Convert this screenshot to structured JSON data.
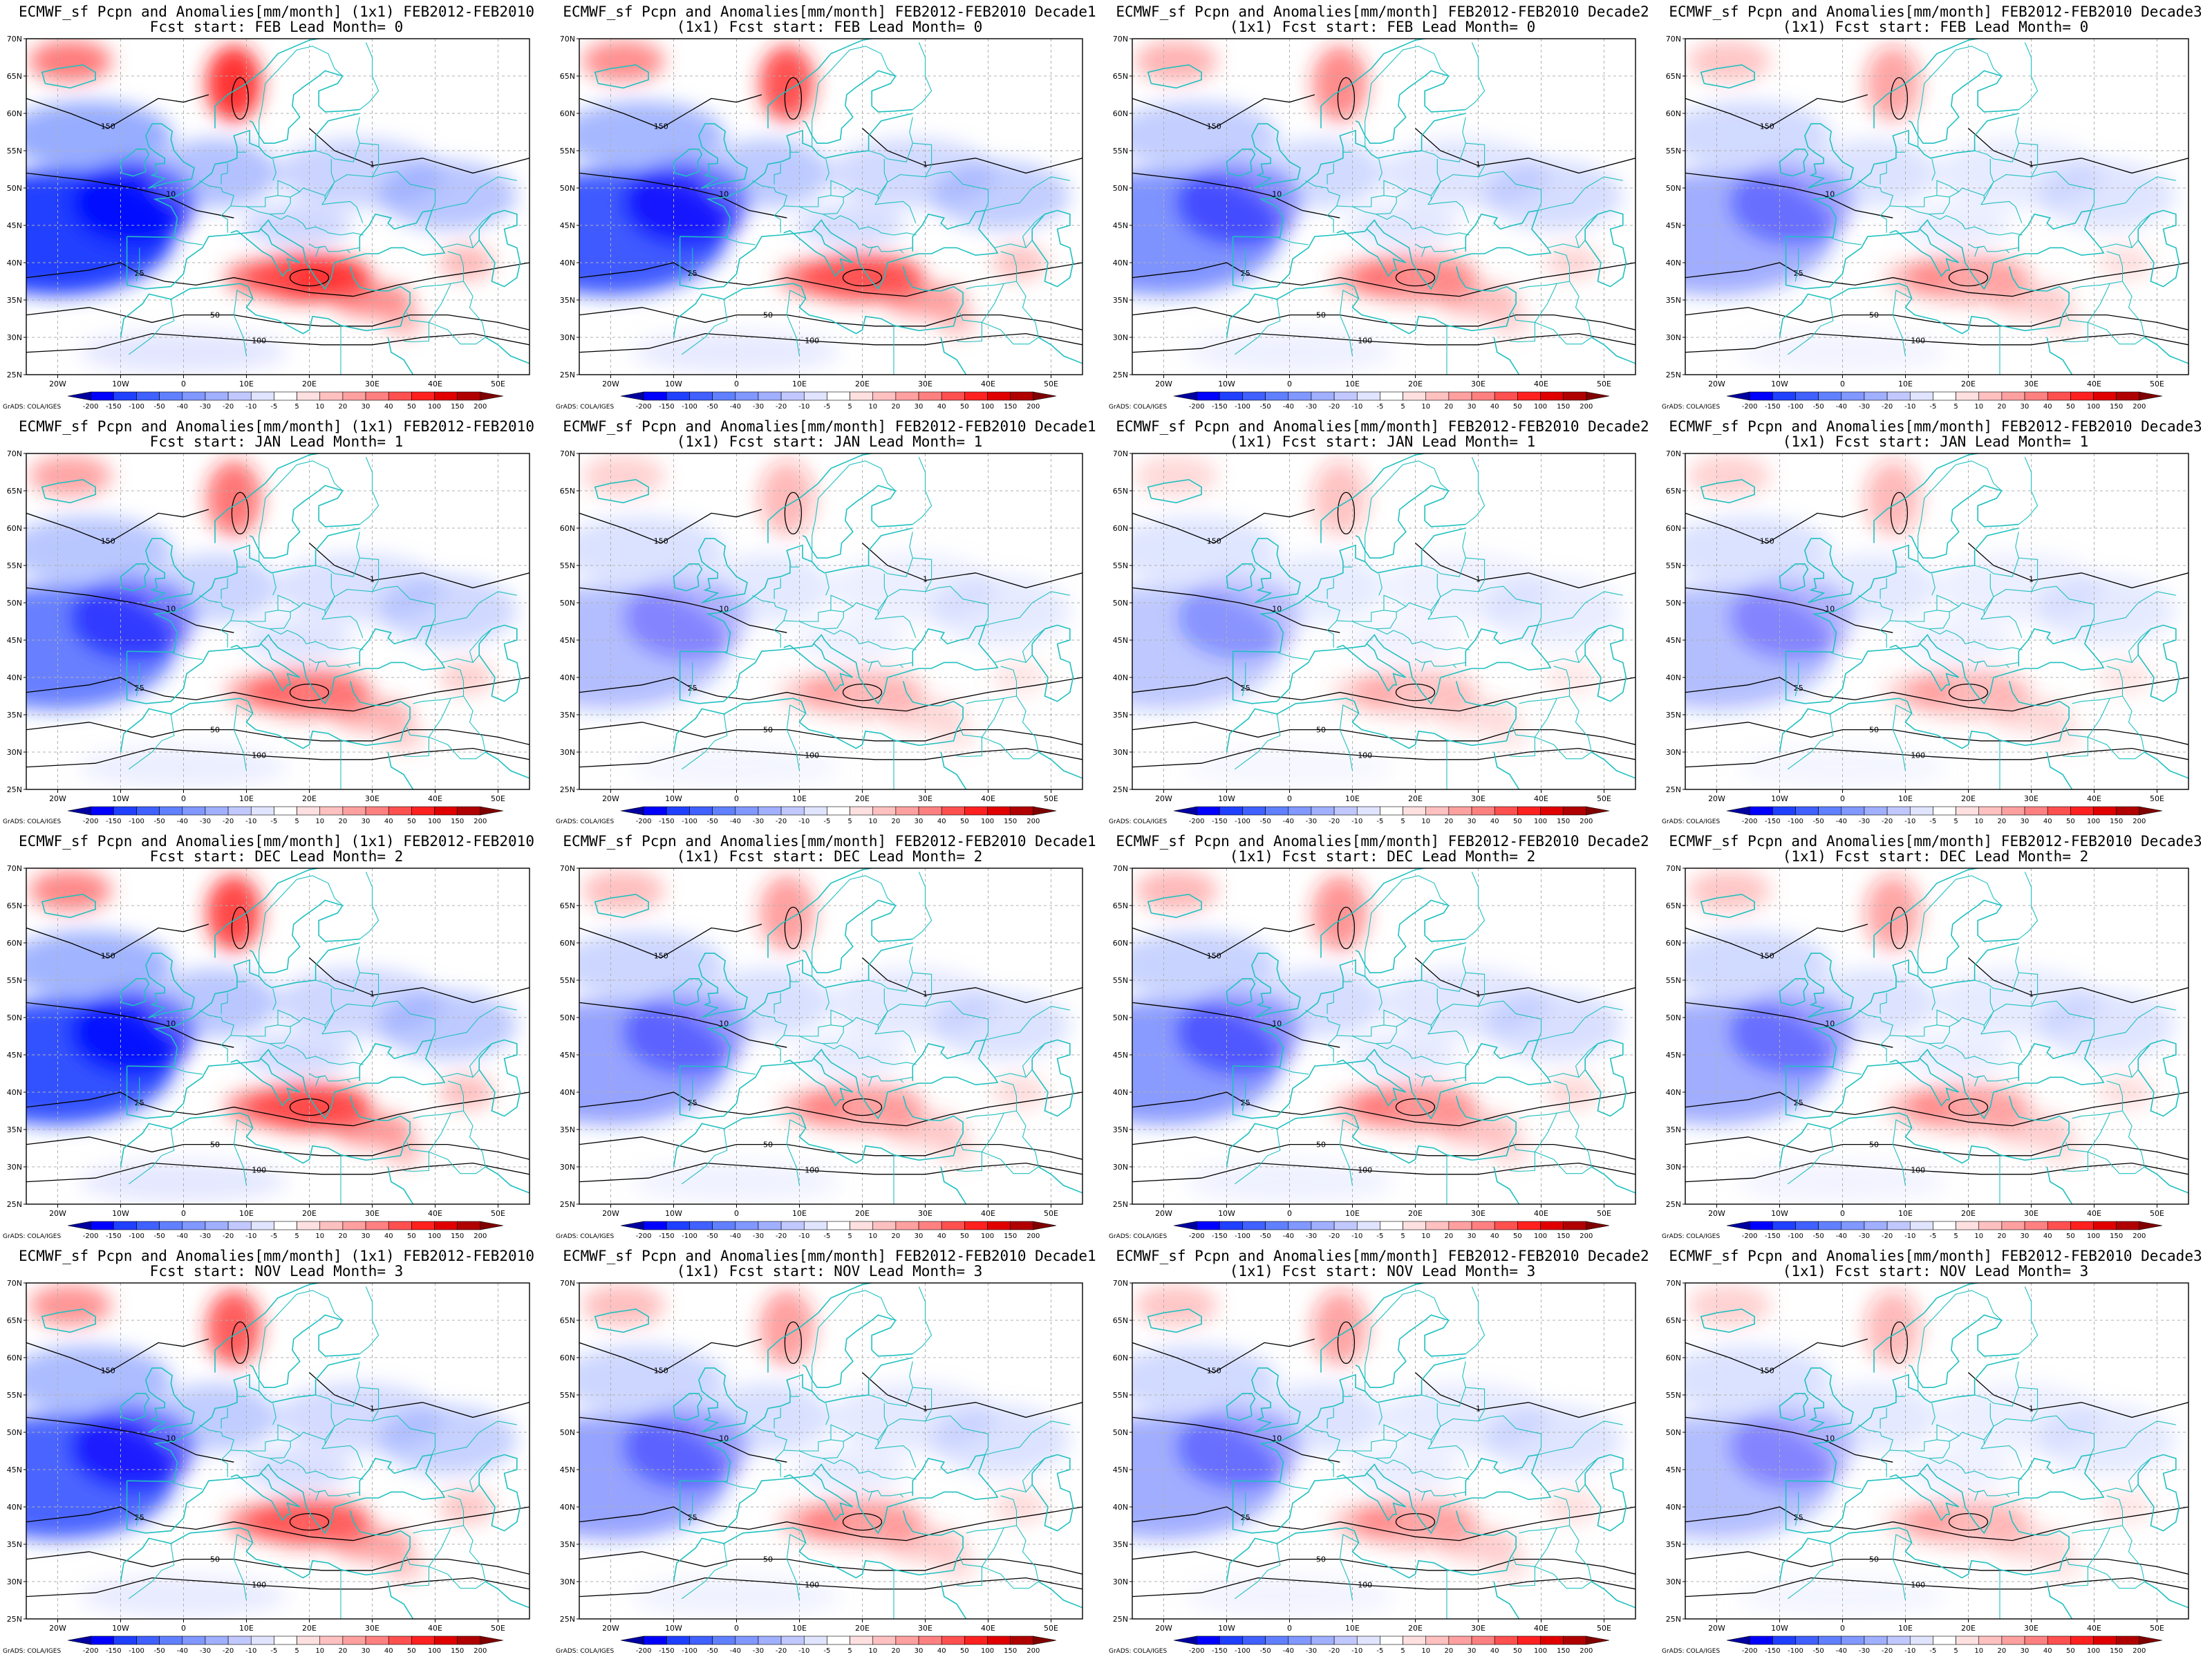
{
  "figure": {
    "panel_title_prefix": "ECMWF_sf Pcpn and Anomalies[mm/month]",
    "rows": [
      {
        "start_line": "Fcst start: FEB",
        "lead_line": "Lead Month= 0"
      },
      {
        "start_line": "Fcst start: JAN",
        "lead_line": "Lead Month= 1"
      },
      {
        "start_line": "Fcst start: DEC",
        "lead_line": "Lead Month= 2"
      },
      {
        "start_line": "Fcst start: NOV",
        "lead_line": "Lead Month= 3"
      }
    ],
    "panels": [
      {
        "row": 0,
        "col": 0,
        "line1": "ECMWF_sf Pcpn and Anomalies[mm/month] (1x1) FEB2012-FEB2010",
        "line2": "Fcst start: FEB  Lead Month= 0",
        "intensity": 1.0
      },
      {
        "row": 0,
        "col": 1,
        "line1": "ECMWF_sf Pcpn and Anomalies[mm/month] FEB2012-FEB2010 Decade1",
        "line2": "(1x1) Fcst start: FEB  Lead Month= 0",
        "intensity": 0.85
      },
      {
        "row": 0,
        "col": 2,
        "line1": "ECMWF_sf Pcpn and Anomalies[mm/month] FEB2012-FEB2010 Decade2",
        "line2": "(1x1) Fcst start: FEB  Lead Month= 0",
        "intensity": 0.55
      },
      {
        "row": 0,
        "col": 3,
        "line1": "ECMWF_sf Pcpn and Anomalies[mm/month] FEB2012-FEB2010 Decade3",
        "line2": "(1x1) Fcst start: FEB  Lead Month= 0",
        "intensity": 0.4
      },
      {
        "row": 1,
        "col": 0,
        "line1": "ECMWF_sf Pcpn and Anomalies[mm/month] (1x1) FEB2012-FEB2010",
        "line2": "Fcst start: JAN  Lead Month= 1",
        "intensity": 0.65
      },
      {
        "row": 1,
        "col": 1,
        "line1": "ECMWF_sf Pcpn and Anomalies[mm/month] FEB2012-FEB2010 Decade1",
        "line2": "(1x1) Fcst start: JAN  Lead Month= 1",
        "intensity": 0.3
      },
      {
        "row": 1,
        "col": 2,
        "line1": "ECMWF_sf Pcpn and Anomalies[mm/month] FEB2012-FEB2010 Decade2",
        "line2": "(1x1) Fcst start: JAN  Lead Month= 1",
        "intensity": 0.25
      },
      {
        "row": 1,
        "col": 3,
        "line1": "ECMWF_sf Pcpn and Anomalies[mm/month] FEB2012-FEB2010 Decade3",
        "line2": "(1x1) Fcst start: JAN  Lead Month= 1",
        "intensity": 0.3
      },
      {
        "row": 2,
        "col": 0,
        "line1": "ECMWF_sf Pcpn and Anomalies[mm/month] (1x1) FEB2012-FEB2010",
        "line2": "Fcst start: DEC  Lead Month= 2",
        "intensity": 0.9
      },
      {
        "row": 2,
        "col": 1,
        "line1": "ECMWF_sf Pcpn and Anomalies[mm/month] FEB2012-FEB2010 Decade1",
        "line2": "(1x1) Fcst start: DEC  Lead Month= 2",
        "intensity": 0.45
      },
      {
        "row": 2,
        "col": 2,
        "line1": "ECMWF_sf Pcpn and Anomalies[mm/month] FEB2012-FEB2010 Decade2",
        "line2": "(1x1) Fcst start: DEC  Lead Month= 2",
        "intensity": 0.5
      },
      {
        "row": 2,
        "col": 3,
        "line1": "ECMWF_sf Pcpn and Anomalies[mm/month] FEB2012-FEB2010 Decade3",
        "line2": "(1x1) Fcst start: DEC  Lead Month= 2",
        "intensity": 0.4
      },
      {
        "row": 3,
        "col": 0,
        "line1": "ECMWF_sf Pcpn and Anomalies[mm/month] (1x1) FEB2012-FEB2010",
        "line2": "Fcst start: NOV  Lead Month= 3",
        "intensity": 0.8
      },
      {
        "row": 3,
        "col": 1,
        "line1": "ECMWF_sf Pcpn and Anomalies[mm/month] FEB2012-FEB2010 Decade1",
        "line2": "(1x1) Fcst start: NOV  Lead Month= 3",
        "intensity": 0.45
      },
      {
        "row": 3,
        "col": 2,
        "line1": "ECMWF_sf Pcpn and Anomalies[mm/month] FEB2012-FEB2010 Decade2",
        "line2": "(1x1) Fcst start: NOV  Lead Month= 3",
        "intensity": 0.4
      },
      {
        "row": 3,
        "col": 3,
        "line1": "ECMWF_sf Pcpn and Anomalies[mm/month] FEB2012-FEB2010 Decade3",
        "line2": "(1x1) Fcst start: NOV  Lead Month= 3",
        "intensity": 0.3
      }
    ],
    "lon_ticks": [
      "20W",
      "10W",
      "0",
      "10E",
      "20E",
      "30E",
      "40E",
      "50E"
    ],
    "lat_ticks": [
      "70N",
      "65N",
      "60N",
      "55N",
      "50N",
      "45N",
      "40N",
      "35N",
      "30N",
      "25N"
    ],
    "colorbar": {
      "labels": [
        "-200",
        "-150",
        "-100",
        "-50",
        "-40",
        "-30",
        "-20",
        "-10",
        "-5",
        "5",
        "10",
        "20",
        "30",
        "40",
        "50",
        "100",
        "150",
        "200"
      ],
      "colors": [
        "#0000a0",
        "#0000ff",
        "#2040ff",
        "#4060ff",
        "#6080ff",
        "#8098ff",
        "#a0b0ff",
        "#c0c8ff",
        "#e0e4ff",
        "#ffffff",
        "#ffe0e0",
        "#ffc0c0",
        "#ffa0a0",
        "#ff8080",
        "#ff5050",
        "#ff2020",
        "#e00000",
        "#b00000",
        "#800000"
      ]
    },
    "credit": "GrADS: COLA/IGES",
    "contour_labels": [
      "10",
      "25",
      "50",
      "100",
      "150",
      "1"
    ],
    "colors": {
      "coast": "#20c0c0",
      "contour": "#000000",
      "grid": "#b0b0b0"
    }
  }
}
